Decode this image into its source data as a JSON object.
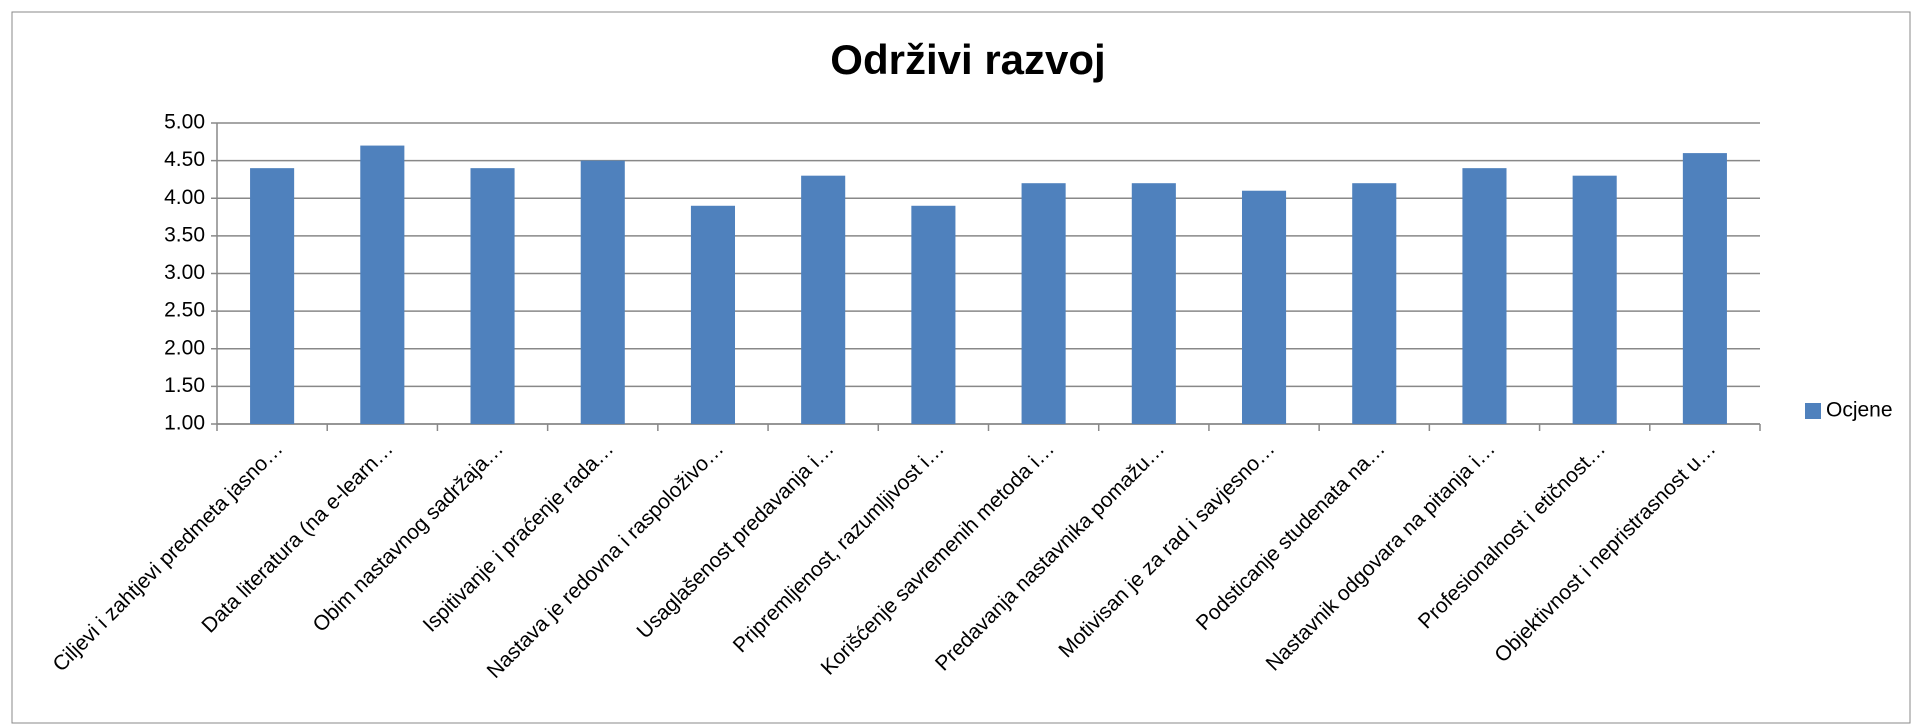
{
  "chart_data": {
    "type": "bar",
    "title": "Održivi razvoj",
    "categories": [
      "Ciljevi i zahtjevi predmeta jasno…",
      "Data literatura (na e-learn…",
      "Obim nastavnog  sadržaja…",
      "Ispitivanje i praćenje rada…",
      "Nastava je redovna i raspoloživo…",
      "Usaglašenost  predavanja i…",
      "Pripremljenost, razumljivost i…",
      "Korišćenje savremenih metoda i…",
      "Predavanja nastavnika pomažu…",
      "Motivisan  je za rad i savjesno…",
      "Podsticanje studenata na…",
      "Nastavnik odgovara na pitanja i…",
      "Profesionalnost i etičnost…",
      "Objektivnost i nepristrasnost u…"
    ],
    "series": [
      {
        "name": "Ocjene",
        "color": "#4f81bd",
        "values": [
          4.4,
          4.7,
          4.4,
          4.5,
          3.9,
          4.3,
          3.9,
          4.2,
          4.2,
          4.1,
          4.2,
          4.4,
          4.3,
          4.6
        ]
      }
    ],
    "ylim": [
      1,
      5
    ],
    "yticks": [
      {
        "value": 1,
        "label": "1.00"
      },
      {
        "value": 1.5,
        "label": "1.50"
      },
      {
        "value": 2,
        "label": "2.00"
      },
      {
        "value": 2.5,
        "label": "2.50"
      },
      {
        "value": 3,
        "label": "3.00"
      },
      {
        "value": 3.5,
        "label": "3.50"
      },
      {
        "value": 4,
        "label": "4.00"
      },
      {
        "value": 4.5,
        "label": "4.50"
      },
      {
        "value": 5,
        "label": "5.00"
      }
    ],
    "grid": true,
    "legend": "right"
  }
}
